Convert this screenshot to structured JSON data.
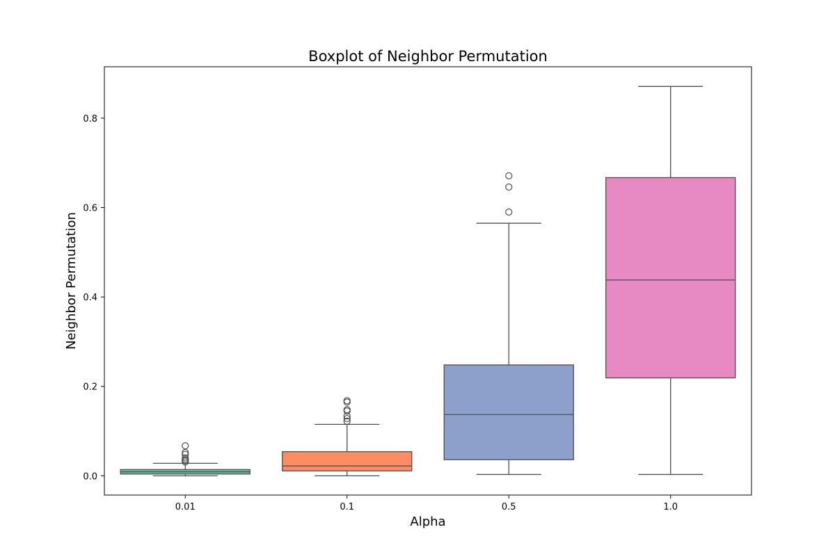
{
  "chart_data": {
    "type": "boxplot",
    "title": "Boxplot of Neighbor Permutation",
    "xlabel": "Alpha",
    "ylabel": "Neighbor Permutation",
    "categories": [
      "0.01",
      "0.1",
      "0.5",
      "1.0"
    ],
    "ylim": [
      -0.043,
      0.915
    ],
    "yticks": [
      0.0,
      0.2,
      0.4,
      0.6,
      0.8
    ],
    "ytick_labels": [
      "0.0",
      "0.2",
      "0.4",
      "0.6",
      "0.8"
    ],
    "grid": false,
    "legend": "none",
    "boxes": [
      {
        "category": "0.01",
        "color": "#66c2a5",
        "whisker_low": 0.0,
        "q1": 0.004,
        "median": 0.009,
        "q3": 0.014,
        "whisker_high": 0.028,
        "outliers": [
          0.031,
          0.034,
          0.036,
          0.04,
          0.048,
          0.052,
          0.067
        ]
      },
      {
        "category": "0.1",
        "color": "#fc8d62",
        "whisker_low": 0.0,
        "q1": 0.011,
        "median": 0.022,
        "q3": 0.054,
        "whisker_high": 0.115,
        "outliers": [
          0.122,
          0.128,
          0.134,
          0.145,
          0.148,
          0.165,
          0.168
        ]
      },
      {
        "category": "0.5",
        "color": "#8da0cb",
        "whisker_low": 0.003,
        "q1": 0.036,
        "median": 0.137,
        "q3": 0.248,
        "whisker_high": 0.565,
        "outliers": [
          0.59,
          0.646,
          0.671
        ]
      },
      {
        "category": "1.0",
        "color": "#e78ac3",
        "whisker_low": 0.003,
        "q1": 0.219,
        "median": 0.438,
        "q3": 0.667,
        "whisker_high": 0.871,
        "outliers": []
      }
    ]
  }
}
